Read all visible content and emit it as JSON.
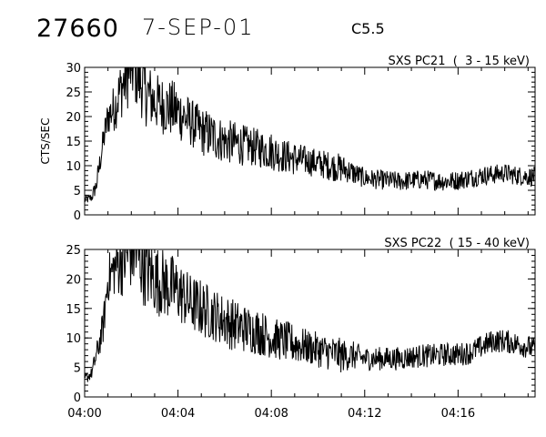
{
  "header": {
    "event_id": "27660",
    "date": "7-SEP-01",
    "flare_class": "C5.5"
  },
  "chart_data": [
    {
      "type": "line",
      "title": "SXS PC21  (  3 - 15 keV)",
      "ylabel": "CTS/SEC",
      "xlabel": "",
      "xlim_minutes": [
        0,
        19.3
      ],
      "ylim": [
        0,
        30
      ],
      "yticks": [
        "0",
        "5",
        "10",
        "15",
        "20",
        "25",
        "30"
      ],
      "xticks": [
        "04:00",
        "04:04",
        "04:08",
        "04:12",
        "04:16"
      ],
      "color": "#000000",
      "series": [
        {
          "x_minutes": [
            0,
            0.3,
            0.5,
            0.8,
            1.0,
            1.3,
            1.5,
            1.8,
            2.0,
            2.3,
            2.6,
            3.0,
            3.5,
            4.0,
            4.5,
            5.0,
            5.5,
            6.0,
            6.5,
            7.0,
            7.5,
            8.0,
            8.5,
            9.0,
            9.5,
            10.0,
            10.5,
            11.0,
            11.3,
            11.5,
            12.0,
            12.5,
            13.0,
            13.5,
            14.0,
            14.5,
            15.0,
            15.5,
            16.0,
            16.5,
            17.0,
            17.5,
            18.0,
            18.5,
            19.0,
            19.3
          ],
          "values": [
            3,
            3.5,
            6,
            15,
            20,
            22,
            25,
            28,
            30,
            28,
            25,
            23,
            22,
            21,
            19,
            17,
            16,
            15,
            14.5,
            14,
            13.5,
            13,
            12,
            11.5,
            11,
            10.5,
            10,
            9.5,
            9,
            8.5,
            7.5,
            7.2,
            7.0,
            6.8,
            7.0,
            7.2,
            7.0,
            6.8,
            7.0,
            7.5,
            8.0,
            8.2,
            8.5,
            8.0,
            7.8,
            7.8
          ],
          "noise_amplitude": [
            1,
            1,
            2,
            3,
            4,
            5,
            6,
            7,
            7,
            7,
            7,
            6,
            6,
            6,
            5,
            5,
            5,
            4.5,
            4.5,
            4,
            4,
            4,
            3.5,
            3.5,
            3,
            3,
            3,
            3,
            2.5,
            2.5,
            2,
            2,
            2,
            2,
            2,
            2,
            2,
            2,
            2,
            2,
            2,
            2,
            2,
            2,
            2,
            2
          ]
        }
      ]
    },
    {
      "type": "line",
      "title": "SXS PC22  ( 15 - 40 keV)",
      "ylabel": "",
      "xlabel": "",
      "xlim_minutes": [
        0,
        19.3
      ],
      "ylim": [
        0,
        25
      ],
      "yticks": [
        "0",
        "5",
        "10",
        "15",
        "20",
        "25"
      ],
      "xticks": [
        "04:00",
        "04:04",
        "04:08",
        "04:12",
        "04:16"
      ],
      "color": "#000000",
      "series": [
        {
          "x_minutes": [
            0,
            0.3,
            0.5,
            0.8,
            1.0,
            1.3,
            1.5,
            1.8,
            2.0,
            2.3,
            2.6,
            3.0,
            3.5,
            4.0,
            4.5,
            5.0,
            5.5,
            6.0,
            6.5,
            7.0,
            7.5,
            8.0,
            8.5,
            9.0,
            9.5,
            10.0,
            10.5,
            11.0,
            11.3,
            11.5,
            12.0,
            12.5,
            13.0,
            13.5,
            14.0,
            14.5,
            15.0,
            15.5,
            16.0,
            16.5,
            17.0,
            17.5,
            18.0,
            18.5,
            19.0,
            19.3
          ],
          "values": [
            3,
            4,
            7,
            12,
            20,
            22,
            23,
            24,
            25,
            24,
            22,
            20,
            19,
            18,
            16,
            15,
            14,
            13,
            12,
            11.5,
            11,
            10,
            9.5,
            9,
            8.5,
            8,
            7.5,
            7,
            7,
            7,
            6.5,
            6.5,
            6.5,
            6.5,
            6.8,
            7,
            7,
            7.2,
            7.2,
            7.5,
            8.5,
            9.5,
            9.5,
            9,
            8.5,
            8
          ],
          "noise_amplitude": [
            1,
            1,
            2,
            3,
            4,
            5,
            6,
            7,
            7,
            7,
            7,
            6,
            6,
            5.5,
            5,
            5,
            4.5,
            4.5,
            4.5,
            4,
            4,
            3.5,
            3.5,
            3.5,
            3,
            3,
            3,
            3,
            2.5,
            2.5,
            2,
            2,
            2,
            2,
            2,
            2,
            2,
            2,
            2,
            2,
            2,
            2,
            2,
            2,
            2,
            2
          ]
        }
      ]
    }
  ]
}
